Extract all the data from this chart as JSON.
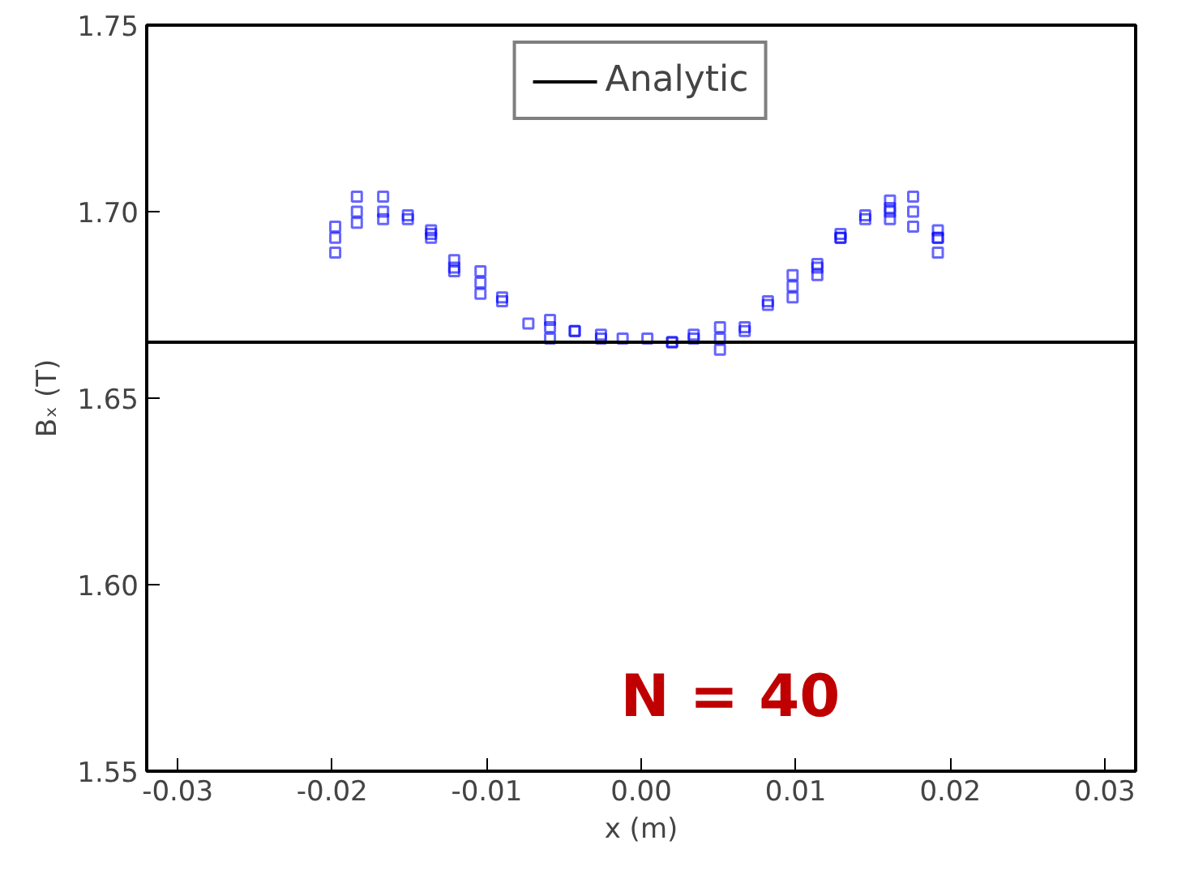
{
  "chart_data": {
    "type": "scatter",
    "xlabel": "x (m)",
    "ylabel": "Bₓ (T)",
    "xlim": [
      -0.032,
      0.032
    ],
    "ylim": [
      1.55,
      1.75
    ],
    "xticks": [
      {
        "value": -0.03,
        "label": "-0.03"
      },
      {
        "value": -0.02,
        "label": "-0.02"
      },
      {
        "value": -0.01,
        "label": "-0.01"
      },
      {
        "value": 0,
        "label": "0.00"
      },
      {
        "value": 0.01,
        "label": "0.01"
      },
      {
        "value": 0.02,
        "label": "0.02"
      },
      {
        "value": 0.03,
        "label": "0.03"
      }
    ],
    "yticks": [
      {
        "value": 1.55,
        "label": "1.55"
      },
      {
        "value": 1.6,
        "label": "1.60"
      },
      {
        "value": 1.65,
        "label": "1.65"
      },
      {
        "value": 1.7,
        "label": "1.70"
      },
      {
        "value": 1.75,
        "label": "1.75"
      }
    ],
    "grid": false,
    "legend": "top",
    "annotations": [
      "N = 40"
    ],
    "series": [
      {
        "color": "#0000ff",
        "marker": "square",
        "x": [
          -0.0198,
          -0.0198,
          -0.0198,
          -0.0184,
          -0.0184,
          -0.0184,
          -0.0167,
          -0.0167,
          -0.0167,
          -0.0151,
          -0.0151,
          -0.0136,
          -0.0136,
          -0.0136,
          -0.0121,
          -0.0121,
          -0.0121,
          -0.0104,
          -0.0104,
          -0.0104,
          -0.009,
          -0.009,
          -0.0073,
          -0.0059,
          -0.0059,
          -0.0059,
          -0.0043,
          -0.0043,
          -0.0026,
          -0.0026,
          -0.0012,
          0.0004,
          0.002,
          0.002,
          0.0034,
          0.0034,
          0.0051,
          0.0051,
          0.0051,
          0.0067,
          0.0067,
          0.0082,
          0.0082,
          0.0098,
          0.0098,
          0.0098,
          0.0114,
          0.0114,
          0.0114,
          0.0129,
          0.0129,
          0.0129,
          0.0145,
          0.0145,
          0.0161,
          0.0161,
          0.0161,
          0.0161,
          0.0176,
          0.0176,
          0.0176,
          0.0192,
          0.0192,
          0.0192,
          0.0192
        ],
        "values": [
          1.696,
          1.693,
          1.689,
          1.704,
          1.7,
          1.697,
          1.704,
          1.7,
          1.698,
          1.699,
          1.698,
          1.695,
          1.694,
          1.693,
          1.687,
          1.685,
          1.684,
          1.684,
          1.681,
          1.678,
          1.677,
          1.676,
          1.67,
          1.671,
          1.669,
          1.666,
          1.668,
          1.668,
          1.667,
          1.666,
          1.666,
          1.666,
          1.665,
          1.665,
          1.667,
          1.666,
          1.669,
          1.666,
          1.663,
          1.669,
          1.668,
          1.676,
          1.675,
          1.683,
          1.68,
          1.677,
          1.686,
          1.685,
          1.683,
          1.694,
          1.693,
          1.693,
          1.699,
          1.698,
          1.703,
          1.701,
          1.7,
          1.698,
          1.704,
          1.7,
          1.696,
          1.695,
          1.693,
          1.693,
          1.689
        ]
      },
      {
        "name": "Analytic",
        "type": "line",
        "color": "#000000",
        "line_style": "solid",
        "x": [
          -0.032,
          0.032
        ],
        "values": [
          1.665,
          1.665
        ]
      }
    ]
  }
}
